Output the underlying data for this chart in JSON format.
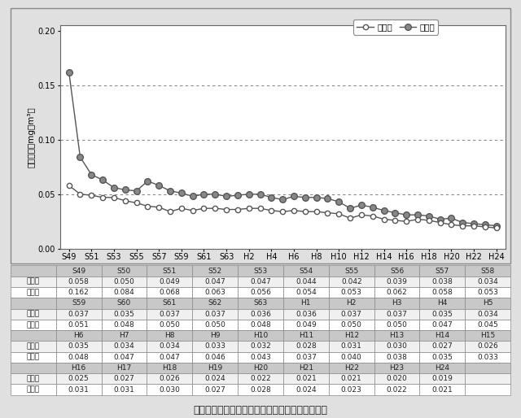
{
  "x_all_labels": [
    "S49",
    "S50",
    "S51",
    "S52",
    "S53",
    "S54",
    "S55",
    "S56",
    "S57",
    "S58",
    "S59",
    "S60",
    "S61",
    "S62",
    "S63",
    "H1",
    "H2",
    "H3",
    "H4",
    "H5",
    "H6",
    "H7",
    "H8",
    "H9",
    "H10",
    "H11",
    "H12",
    "H13",
    "H14",
    "H15",
    "H16",
    "H17",
    "H18",
    "H19",
    "H20",
    "H21",
    "H22",
    "H23",
    "H24"
  ],
  "ippan_values": [
    0.058,
    0.05,
    0.049,
    0.047,
    0.047,
    0.044,
    0.042,
    0.039,
    0.038,
    0.034,
    0.037,
    0.035,
    0.037,
    0.037,
    0.036,
    0.036,
    0.037,
    0.037,
    0.035,
    0.034,
    0.035,
    0.034,
    0.034,
    0.033,
    0.032,
    0.028,
    0.031,
    0.03,
    0.027,
    0.026,
    0.025,
    0.027,
    0.026,
    0.024,
    0.022,
    0.021,
    0.021,
    0.02,
    0.019
  ],
  "jihai_values": [
    0.162,
    0.084,
    0.068,
    0.063,
    0.056,
    0.054,
    0.053,
    0.062,
    0.058,
    0.053,
    0.051,
    0.048,
    0.05,
    0.05,
    0.048,
    0.049,
    0.05,
    0.05,
    0.047,
    0.045,
    0.048,
    0.047,
    0.047,
    0.046,
    0.043,
    0.037,
    0.04,
    0.038,
    0.035,
    0.033,
    0.031,
    0.031,
    0.03,
    0.027,
    0.028,
    0.024,
    0.023,
    0.022,
    0.021
  ],
  "tick_positions": [
    0,
    2,
    4,
    6,
    8,
    10,
    12,
    14,
    16,
    18,
    20,
    22,
    24,
    26,
    28,
    30,
    32,
    34,
    36,
    38
  ],
  "tick_labels": [
    "S49",
    "S51",
    "S53",
    "S55",
    "S57",
    "S59",
    "S61",
    "S63",
    "H2",
    "H4",
    "H6",
    "H8",
    "H10",
    "H12",
    "H14",
    "H16",
    "H18",
    "H20",
    "H22",
    "H24"
  ],
  "ylim": [
    0.0,
    0.205
  ],
  "yticks": [
    0.0,
    0.05,
    0.1,
    0.15,
    0.2
  ],
  "ylabel": "年平均値（mg／m³）",
  "legend_ippan": "一般局",
  "legend_jihai": "自排局",
  "dotted_lines": [
    0.05,
    0.1,
    0.15
  ],
  "line_color": "#555555",
  "marker_color_ippan": "#ffffff",
  "marker_color_jihai": "#888888",
  "marker_edge_color": "#555555",
  "bg_outer": "#e0e0e0",
  "bg_chart": "#ffffff",
  "caption": "図２－４　浮遊粒子状物質濃度の年平均値の推移",
  "table_data": [
    [
      "",
      "S49",
      "S50",
      "S51",
      "S52",
      "S53",
      "S54",
      "S55",
      "S56",
      "S57",
      "S58"
    ],
    [
      "一般局",
      "0.058",
      "0.050",
      "0.049",
      "0.047",
      "0.047",
      "0.044",
      "0.042",
      "0.039",
      "0.038",
      "0.034"
    ],
    [
      "自排局",
      "0.162",
      "0.084",
      "0.068",
      "0.063",
      "0.056",
      "0.054",
      "0.053",
      "0.062",
      "0.058",
      "0.053"
    ],
    [
      "",
      "S59",
      "S60",
      "S61",
      "S62",
      "S63",
      "H1",
      "H2",
      "H3",
      "H4",
      "H5"
    ],
    [
      "一般局",
      "0.037",
      "0.035",
      "0.037",
      "0.037",
      "0.036",
      "0.036",
      "0.037",
      "0.037",
      "0.035",
      "0.034"
    ],
    [
      "自排局",
      "0.051",
      "0.048",
      "0.050",
      "0.050",
      "0.048",
      "0.049",
      "0.050",
      "0.050",
      "0.047",
      "0.045"
    ],
    [
      "",
      "H6",
      "H7",
      "H8",
      "H9",
      "H10",
      "H11",
      "H12",
      "H13",
      "H14",
      "H15"
    ],
    [
      "一般局",
      "0.035",
      "0.034",
      "0.034",
      "0.033",
      "0.032",
      "0.028",
      "0.031",
      "0.030",
      "0.027",
      "0.026"
    ],
    [
      "自排局",
      "0.048",
      "0.047",
      "0.047",
      "0.046",
      "0.043",
      "0.037",
      "0.040",
      "0.038",
      "0.035",
      "0.033"
    ],
    [
      "",
      "H16",
      "H17",
      "H18",
      "H19",
      "H20",
      "H21",
      "H22",
      "H23",
      "H24",
      ""
    ],
    [
      "一般局",
      "0.025",
      "0.027",
      "0.026",
      "0.024",
      "0.022",
      "0.021",
      "0.021",
      "0.020",
      "0.019",
      ""
    ],
    [
      "自排局",
      "0.031",
      "0.031",
      "0.030",
      "0.027",
      "0.028",
      "0.024",
      "0.023",
      "0.022",
      "0.021",
      ""
    ]
  ]
}
